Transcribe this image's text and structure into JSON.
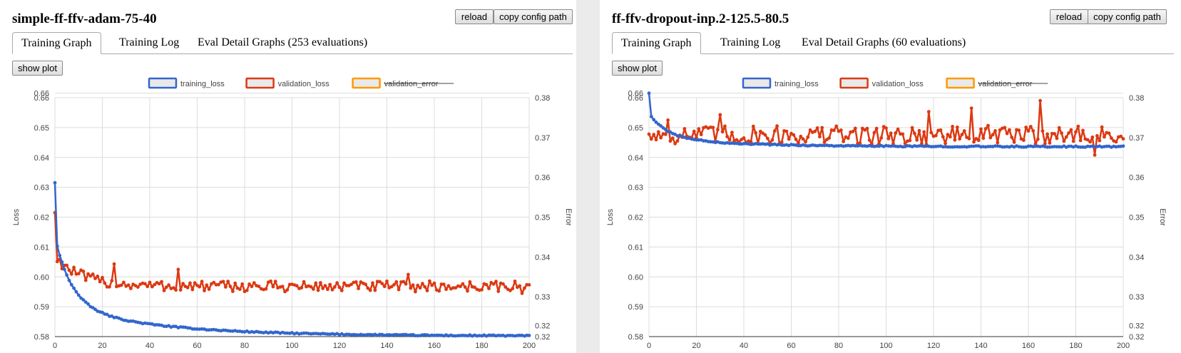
{
  "panels": [
    {
      "title": "simple-ff-ffv-adam-75-40",
      "reload_label": "reload",
      "copy_label": "copy config path",
      "tabs": [
        "Training Graph",
        "Training Log",
        "Eval Detail Graphs (253 evaluations)"
      ],
      "active_tab": 0,
      "show_plot_label": "show plot",
      "chart_data": {
        "type": "line",
        "legend": [
          {
            "name": "training_loss",
            "color": "#3366cc",
            "strikethrough": false
          },
          {
            "name": "validation_loss",
            "color": "#dc3912",
            "strikethrough": false
          },
          {
            "name": "validation_error",
            "color": "#ff9900",
            "strikethrough": true
          }
        ],
        "legend_position": "top",
        "ylabel_left": "Loss",
        "ylabel_right": "Error",
        "xlim": [
          0,
          200
        ],
        "ylim_left": [
          0.58,
          0.66
        ],
        "ylim_right": [
          0.32,
          0.38
        ],
        "x_ticks": [
          "0",
          "20",
          "40",
          "60",
          "80",
          "100",
          "120",
          "140",
          "160",
          "180",
          "200"
        ],
        "y_ticks_left": [
          "0.58",
          "0.59",
          "0.60",
          "0.61",
          "0.62",
          "0.63",
          "0.64",
          "0.65",
          "0.66",
          "0.66"
        ],
        "y_ticks_right": [
          "0.32",
          "0.32",
          "0.33",
          "0.34",
          "0.35",
          "0.36",
          "0.37",
          "0.38"
        ],
        "grid": true,
        "series": [
          {
            "name": "training_loss",
            "color": "#3366cc",
            "model": "decay",
            "start": 0.6315,
            "floor": 0.5802,
            "amp": 0.0185,
            "rate": 0.024,
            "noise": 0.0002
          },
          {
            "name": "validation_loss",
            "color": "#dc3912",
            "model": "decay_noisy",
            "start": 0.6215,
            "floor": 0.5968,
            "amp": 0.01,
            "rate": 0.09,
            "noise": 0.0018,
            "spikes": [
              [
                25,
                0.6043
              ],
              [
                52,
                0.6025
              ],
              [
                149,
                0.6008
              ],
              [
                197,
                0.5945
              ]
            ]
          }
        ]
      }
    },
    {
      "title": "ff-ffv-dropout-inp.2-125.5-80.5",
      "reload_label": "reload",
      "copy_label": "copy config path",
      "tabs": [
        "Training Graph",
        "Training Log",
        "Eval Detail Graphs (60 evaluations)"
      ],
      "active_tab": 0,
      "show_plot_label": "show plot",
      "chart_data": {
        "type": "line",
        "legend": [
          {
            "name": "training_loss",
            "color": "#3366cc",
            "strikethrough": false
          },
          {
            "name": "validation_loss",
            "color": "#dc3912",
            "strikethrough": false
          },
          {
            "name": "validation_error",
            "color": "#ff9900",
            "strikethrough": true
          }
        ],
        "legend_position": "top",
        "ylabel_left": "Loss",
        "ylabel_right": "Error",
        "xlim": [
          0,
          200
        ],
        "ylim_left": [
          0.58,
          0.66
        ],
        "ylim_right": [
          0.32,
          0.38
        ],
        "x_ticks": [
          "0",
          "20",
          "40",
          "60",
          "80",
          "100",
          "120",
          "140",
          "160",
          "180",
          "200"
        ],
        "y_ticks_left": [
          "0.58",
          "0.59",
          "0.60",
          "0.61",
          "0.62",
          "0.63",
          "0.64",
          "0.65",
          "0.66",
          "0.66"
        ],
        "y_ticks_right": [
          "0.32",
          "0.32",
          "0.33",
          "0.34",
          "0.35",
          "0.36",
          "0.37",
          "0.38"
        ],
        "grid": true,
        "series": [
          {
            "name": "training_loss",
            "color": "#3366cc",
            "model": "decay",
            "start": 0.6615,
            "floor": 0.6436,
            "amp": 0.006,
            "rate": 0.03,
            "noise": 0.0002
          },
          {
            "name": "validation_loss",
            "color": "#dc3912",
            "model": "decay_noisy",
            "start": 0.6478,
            "floor": 0.6475,
            "amp": 0.0,
            "rate": 0.1,
            "noise": 0.0032,
            "spikes": [
              [
                8,
                0.6525
              ],
              [
                30,
                0.6543
              ],
              [
                118,
                0.6553
              ],
              [
                136,
                0.6565
              ],
              [
                165,
                0.659
              ],
              [
                188,
                0.6408
              ]
            ]
          }
        ]
      }
    }
  ]
}
